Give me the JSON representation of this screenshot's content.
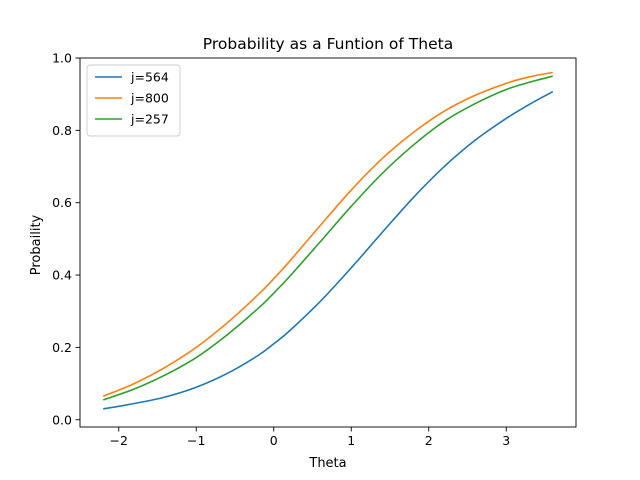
{
  "chart_data": {
    "type": "line",
    "title": "Probability as a Funtion of Theta",
    "xlabel": "Theta",
    "ylabel": "Probaility",
    "xlim": [
      -2.5,
      3.9
    ],
    "ylim": [
      -0.02,
      1.0
    ],
    "x_ticks": [
      -2,
      -1,
      0,
      1,
      2,
      3
    ],
    "x_tick_labels": [
      "−2",
      "−1",
      "0",
      "1",
      "2",
      "3"
    ],
    "y_ticks": [
      0.0,
      0.2,
      0.4,
      0.6,
      0.8,
      1.0
    ],
    "y_tick_labels": [
      "0.0",
      "0.2",
      "0.4",
      "0.6",
      "0.8",
      "1.0"
    ],
    "grid": false,
    "legend_position": "top-left",
    "x": [
      -2.2,
      -1.8,
      -1.4,
      -1.0,
      -0.6,
      -0.2,
      0.0,
      0.2,
      0.6,
      1.0,
      1.4,
      1.8,
      2.2,
      2.6,
      3.0,
      3.3,
      3.6
    ],
    "series": [
      {
        "name": "j=564",
        "color": "#1f77b4",
        "values": [
          0.03,
          0.045,
          0.063,
          0.09,
          0.128,
          0.178,
          0.21,
          0.245,
          0.327,
          0.42,
          0.518,
          0.614,
          0.7,
          0.773,
          0.833,
          0.872,
          0.907
        ]
      },
      {
        "name": "j=800",
        "color": "#ff7f0e",
        "values": [
          0.065,
          0.1,
          0.145,
          0.2,
          0.268,
          0.346,
          0.39,
          0.437,
          0.537,
          0.635,
          0.722,
          0.794,
          0.853,
          0.897,
          0.93,
          0.948,
          0.96
        ]
      },
      {
        "name": "j=257",
        "color": "#2ca02c",
        "values": [
          0.055,
          0.085,
          0.124,
          0.172,
          0.235,
          0.308,
          0.35,
          0.395,
          0.492,
          0.59,
          0.681,
          0.759,
          0.825,
          0.874,
          0.913,
          0.933,
          0.95
        ]
      }
    ]
  }
}
